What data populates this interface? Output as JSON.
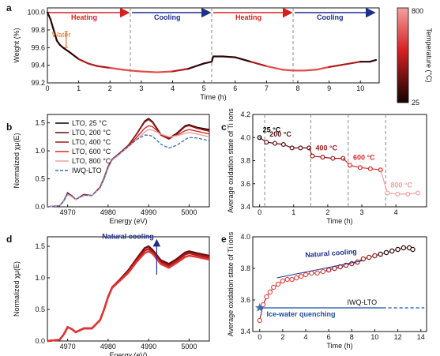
{
  "panels": {
    "a": "a",
    "b": "b",
    "c": "c",
    "d": "d",
    "e": "e"
  },
  "colors": {
    "dark": "#1a0606",
    "red": "#d62020",
    "pink": "#f0a0a0",
    "navy": "#1f2f8a",
    "blue_dashed": "#3a6fb5",
    "orange": "#d8772a"
  },
  "chart_data": [
    {
      "type": "line",
      "panel": "a",
      "xlabel": "Time (h)",
      "ylabel": "Weight (%)",
      "xlim": [
        0,
        10.6
      ],
      "ylim": [
        99.2,
        100.05
      ],
      "xticks": [
        0,
        1,
        2,
        3,
        4,
        5,
        6,
        7,
        8,
        9,
        10
      ],
      "yticks": [
        99.2,
        99.4,
        99.6,
        99.8,
        100.0
      ],
      "ytick_labels": [
        "99.2",
        "99.4",
        "99.6",
        "99.8",
        "100.0"
      ],
      "colorbar": {
        "label": "Temperature (°C)",
        "max": "800",
        "min": "25"
      },
      "phases": [
        {
          "label": "Heating",
          "start": 0,
          "end": 2.65,
          "color": "#d62020"
        },
        {
          "label": "Cooling",
          "start": 2.65,
          "end": 5.25,
          "color": "#1f2f8a"
        },
        {
          "label": "Heating",
          "start": 5.25,
          "end": 7.85,
          "color": "#d62020"
        },
        {
          "label": "Cooling",
          "start": 7.85,
          "end": 10.5,
          "color": "#1f2f8a"
        }
      ],
      "annotation": "Water",
      "x": [
        0,
        0.1,
        0.2,
        0.3,
        0.4,
        0.5,
        0.7,
        1.0,
        1.3,
        1.6,
        2.0,
        2.4,
        2.65,
        3.0,
        3.5,
        4.0,
        4.5,
        5.0,
        5.25,
        5.3,
        5.6,
        6.0,
        6.5,
        7.0,
        7.5,
        7.85,
        8.2,
        8.6,
        9.0,
        9.5,
        10.0,
        10.3,
        10.5
      ],
      "y": [
        100.0,
        99.92,
        99.8,
        99.68,
        99.63,
        99.6,
        99.55,
        99.47,
        99.42,
        99.39,
        99.37,
        99.35,
        99.34,
        99.33,
        99.32,
        99.33,
        99.36,
        99.42,
        99.44,
        99.5,
        99.5,
        99.49,
        99.44,
        99.39,
        99.35,
        99.34,
        99.34,
        99.35,
        99.38,
        99.41,
        99.44,
        99.44,
        99.46
      ]
    },
    {
      "type": "line",
      "panel": "b",
      "xlabel": "Energy (eV)",
      "ylabel": "Normalized χμ(E)",
      "xlim": [
        4965,
        5005
      ],
      "ylim": [
        0,
        1.65
      ],
      "xticks": [
        4970,
        4980,
        4990,
        5000
      ],
      "yticks": [
        0.0,
        0.5,
        1.0,
        1.5
      ],
      "ytick_labels": [
        "0.0",
        "0.5",
        "1.0",
        "1.5"
      ],
      "x": [
        4965,
        4968,
        4969,
        4970,
        4971,
        4972,
        4974,
        4976,
        4978,
        4979,
        4980,
        4981,
        4983,
        4985,
        4987,
        4989,
        4990,
        4991,
        4993,
        4995,
        4997,
        4999,
        5000,
        5002,
        5005
      ],
      "series": [
        {
          "name": "LTO, 25 °C",
          "color": "#000000",
          "dashed": false,
          "values": [
            0,
            0.02,
            0.1,
            0.25,
            0.2,
            0.13,
            0.22,
            0.2,
            0.35,
            0.52,
            0.72,
            0.85,
            0.97,
            1.1,
            1.3,
            1.53,
            1.58,
            1.52,
            1.3,
            1.22,
            1.32,
            1.45,
            1.47,
            1.42,
            1.38
          ]
        },
        {
          "name": "LTO, 200 °C",
          "color": "#5a0f0f",
          "dashed": false,
          "values": [
            0,
            0.02,
            0.1,
            0.25,
            0.2,
            0.13,
            0.22,
            0.2,
            0.35,
            0.52,
            0.72,
            0.85,
            0.97,
            1.1,
            1.3,
            1.52,
            1.57,
            1.51,
            1.29,
            1.21,
            1.31,
            1.44,
            1.46,
            1.41,
            1.37
          ]
        },
        {
          "name": "LTO, 400 °C",
          "color": "#a01818",
          "dashed": false,
          "values": [
            0,
            0.02,
            0.1,
            0.24,
            0.2,
            0.13,
            0.22,
            0.2,
            0.35,
            0.51,
            0.71,
            0.85,
            0.97,
            1.1,
            1.29,
            1.51,
            1.56,
            1.5,
            1.28,
            1.21,
            1.3,
            1.43,
            1.45,
            1.4,
            1.35
          ]
        },
        {
          "name": "LTO, 600 °C",
          "color": "#d62828",
          "dashed": false,
          "values": [
            0,
            0.02,
            0.1,
            0.23,
            0.19,
            0.13,
            0.21,
            0.2,
            0.34,
            0.5,
            0.7,
            0.84,
            0.96,
            1.08,
            1.24,
            1.4,
            1.45,
            1.43,
            1.3,
            1.24,
            1.28,
            1.36,
            1.38,
            1.35,
            1.3
          ]
        },
        {
          "name": "LTO, 800 °C",
          "color": "#f0a0a0",
          "dashed": false,
          "values": [
            0,
            0.02,
            0.09,
            0.22,
            0.18,
            0.13,
            0.2,
            0.2,
            0.33,
            0.49,
            0.69,
            0.83,
            0.95,
            1.07,
            1.2,
            1.33,
            1.38,
            1.37,
            1.3,
            1.25,
            1.27,
            1.31,
            1.33,
            1.3,
            1.25
          ]
        },
        {
          "name": "IWQ-LTO",
          "color": "#3a6fb5",
          "dashed": true,
          "values": [
            0,
            0.02,
            0.1,
            0.24,
            0.2,
            0.13,
            0.21,
            0.2,
            0.34,
            0.51,
            0.71,
            0.85,
            0.96,
            1.08,
            1.2,
            1.28,
            1.28,
            1.26,
            1.12,
            1.05,
            1.1,
            1.2,
            1.24,
            1.23,
            1.18
          ]
        }
      ]
    },
    {
      "type": "line",
      "panel": "c",
      "xlabel": "Time (h)",
      "ylabel": "Average oxidation state of Ti ions",
      "xlim": [
        -0.2,
        4.9
      ],
      "ylim": [
        3.4,
        4.2
      ],
      "xticks": [
        0,
        1,
        2,
        3,
        4
      ],
      "yticks": [
        3.4,
        3.6,
        3.8,
        4.0,
        4.2
      ],
      "ytick_labels": [
        "3.4",
        "3.6",
        "3.8",
        "4.0",
        "4.2"
      ],
      "dividers": [
        0.15,
        1.5,
        2.6,
        3.7
      ],
      "segments": [
        {
          "label": "25 °C",
          "color": "#000000",
          "x": [
            0
          ],
          "y": [
            4.0
          ]
        },
        {
          "label": "200 °C",
          "color": "#5a0f0f",
          "x": [
            0.2,
            0.45,
            0.7,
            0.95,
            1.2,
            1.45
          ],
          "y": [
            3.96,
            3.95,
            3.94,
            3.91,
            3.91,
            3.91
          ]
        },
        {
          "label": "400 °C",
          "color": "#a01818",
          "x": [
            1.55,
            1.85,
            2.15,
            2.45
          ],
          "y": [
            3.84,
            3.83,
            3.82,
            3.82
          ]
        },
        {
          "label": "600 °C",
          "color": "#d62828",
          "x": [
            2.65,
            2.95,
            3.25,
            3.55
          ],
          "y": [
            3.76,
            3.74,
            3.73,
            3.72
          ]
        },
        {
          "label": "800 °C",
          "color": "#f0a0a0",
          "x": [
            3.75,
            4.05,
            4.35,
            4.65
          ],
          "y": [
            3.52,
            3.51,
            3.51,
            3.52
          ]
        }
      ]
    },
    {
      "type": "line",
      "panel": "d",
      "xlabel": "Energy (eV)",
      "ylabel": "Normalized χμ(E)",
      "xlim": [
        4965,
        5005
      ],
      "ylim": [
        0,
        1.65
      ],
      "xticks": [
        4970,
        4980,
        4990,
        5000
      ],
      "yticks": [
        0.0,
        0.5,
        1.0,
        1.5
      ],
      "ytick_labels": [
        "0.0",
        "0.5",
        "1.0",
        "1.5"
      ],
      "annotation": "Natural cooling",
      "x": [
        4965,
        4968,
        4969,
        4970,
        4971,
        4972,
        4974,
        4976,
        4978,
        4979,
        4980,
        4981,
        4983,
        4985,
        4987,
        4989,
        4990,
        4991,
        4993,
        4995,
        4997,
        4999,
        5000,
        5002,
        5005
      ],
      "series": [
        {
          "color": "#6a0c0c",
          "values": [
            0,
            0.02,
            0.1,
            0.22,
            0.19,
            0.14,
            0.2,
            0.2,
            0.33,
            0.5,
            0.7,
            0.85,
            0.98,
            1.12,
            1.3,
            1.47,
            1.5,
            1.44,
            1.28,
            1.22,
            1.3,
            1.4,
            1.42,
            1.39,
            1.35
          ]
        },
        {
          "color": "#b01a1a",
          "values": [
            0,
            0.02,
            0.1,
            0.22,
            0.19,
            0.14,
            0.2,
            0.2,
            0.33,
            0.5,
            0.7,
            0.85,
            0.97,
            1.1,
            1.28,
            1.43,
            1.46,
            1.41,
            1.25,
            1.19,
            1.27,
            1.37,
            1.39,
            1.36,
            1.32
          ]
        },
        {
          "color": "#e03535",
          "values": [
            0,
            0.02,
            0.1,
            0.22,
            0.19,
            0.14,
            0.2,
            0.2,
            0.33,
            0.5,
            0.7,
            0.84,
            0.96,
            1.08,
            1.25,
            1.39,
            1.42,
            1.38,
            1.22,
            1.16,
            1.24,
            1.33,
            1.35,
            1.33,
            1.29
          ]
        }
      ]
    },
    {
      "type": "scatter",
      "panel": "e",
      "xlabel": "Time (h)",
      "ylabel": "Average oxidation state of Ti ions",
      "xlim": [
        -0.6,
        14.5
      ],
      "ylim": [
        3.4,
        4.0
      ],
      "xticks": [
        0,
        2,
        4,
        6,
        8,
        10,
        12,
        14
      ],
      "yticks": [
        3.4,
        3.6,
        3.8,
        4.0
      ],
      "ytick_labels": [
        "3.4",
        "3.6",
        "3.8",
        "4.0"
      ],
      "annotations": {
        "natural_cooling": "Natural cooling",
        "iwq": "IWQ-LTO",
        "quench": "Ice-water quenching"
      },
      "iwq_level": 3.55,
      "x": [
        0,
        0.3,
        0.6,
        0.9,
        1.2,
        1.6,
        2.0,
        2.4,
        2.8,
        3.2,
        3.6,
        4.0,
        4.5,
        5.0,
        5.5,
        6.0,
        6.5,
        7.0,
        7.5,
        8.0,
        8.5,
        9.0,
        9.5,
        10.0,
        10.5,
        11.0,
        11.5,
        12.0,
        12.5,
        13.0,
        13.3
      ],
      "y": [
        3.47,
        3.57,
        3.62,
        3.65,
        3.68,
        3.7,
        3.72,
        3.73,
        3.73,
        3.74,
        3.75,
        3.76,
        3.77,
        3.77,
        3.78,
        3.79,
        3.8,
        3.81,
        3.82,
        3.83,
        3.84,
        3.86,
        3.87,
        3.88,
        3.89,
        3.9,
        3.91,
        3.92,
        3.93,
        3.93,
        3.92
      ]
    }
  ]
}
